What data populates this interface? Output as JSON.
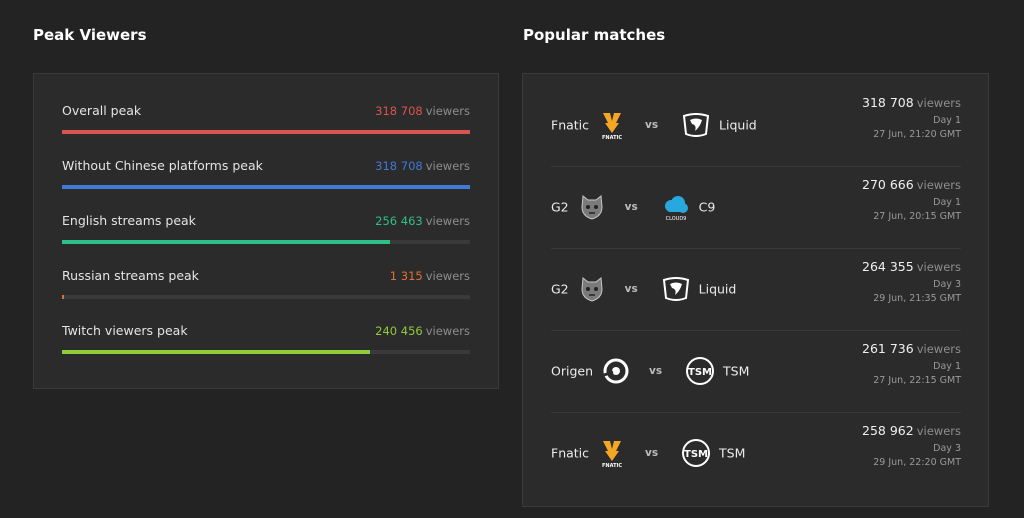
{
  "peak_viewers": {
    "title": "Peak Viewers",
    "stats": [
      {
        "label": "Overall peak",
        "value": "318 708",
        "unit": "viewers",
        "color": "#d9534f",
        "fill": 1.0
      },
      {
        "label": "Without Chinese platforms peak",
        "value": "318 708",
        "unit": "viewers",
        "color": "#3f7ad6",
        "fill": 1.0
      },
      {
        "label": "English streams peak",
        "value": "256 463",
        "unit": "viewers",
        "color": "#2fbf88",
        "fill": 0.805
      },
      {
        "label": "Russian streams peak",
        "value": "1 315",
        "unit": "viewers",
        "color": "#e0703a",
        "fill": 0.004
      },
      {
        "label": "Twitch viewers peak",
        "value": "240 456",
        "unit": "viewers",
        "color": "#8ecb3a",
        "fill": 0.755
      }
    ]
  },
  "popular_matches": {
    "title": "Popular matches",
    "vs_label": "vs",
    "matches": [
      {
        "team1": "Fnatic",
        "logo1": "fnatic-logo",
        "team2": "Liquid",
        "logo2": "liquid-logo",
        "viewers": "318 708",
        "unit": "viewers",
        "day": "Day 1",
        "date": "27 Jun, 21:20 GMT"
      },
      {
        "team1": "G2",
        "logo1": "g2-logo",
        "team2": "C9",
        "logo2": "cloud9-logo",
        "viewers": "270 666",
        "unit": "viewers",
        "day": "Day 1",
        "date": "27 Jun, 20:15 GMT"
      },
      {
        "team1": "G2",
        "logo1": "g2-logo",
        "team2": "Liquid",
        "logo2": "liquid-logo",
        "viewers": "264 355",
        "unit": "viewers",
        "day": "Day 3",
        "date": "29 Jun, 21:35 GMT"
      },
      {
        "team1": "Origen",
        "logo1": "origen-logo",
        "team2": "TSM",
        "logo2": "tsm-logo",
        "viewers": "261 736",
        "unit": "viewers",
        "day": "Day 1",
        "date": "27 Jun, 22:15 GMT"
      },
      {
        "team1": "Fnatic",
        "logo1": "fnatic-logo",
        "team2": "TSM",
        "logo2": "tsm-logo",
        "viewers": "258 962",
        "unit": "viewers",
        "day": "Day 3",
        "date": "29 Jun, 22:20 GMT"
      }
    ],
    "logo_texts": {
      "fnatic": "FNATIC",
      "cloud9": "CLOUD9",
      "tsm": "TSM"
    }
  }
}
